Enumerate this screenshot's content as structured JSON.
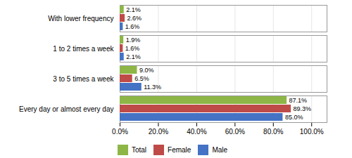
{
  "chart_data": {
    "type": "bar",
    "orientation": "horizontal",
    "categories": [
      "Every day or almost every day",
      "3 to 5 times a week",
      "1 to 2 times a week",
      "With lower frequency"
    ],
    "series": [
      {
        "name": "Total",
        "color": "#8db646",
        "values": [
          87.1,
          9.0,
          1.9,
          2.1
        ],
        "value_labels": [
          "87.1%",
          "9.0%",
          "1.9%",
          "2.1%"
        ]
      },
      {
        "name": "Female",
        "color": "#be4b48",
        "values": [
          89.3,
          6.5,
          1.6,
          2.6
        ],
        "value_labels": [
          "89.3%",
          "6.5%",
          "1.6%",
          "2.6%"
        ]
      },
      {
        "name": "Male",
        "color": "#4472c4",
        "values": [
          85.0,
          11.3,
          2.1,
          1.6
        ],
        "value_labels": [
          "85.0%",
          "11.3%",
          "2.1%",
          "1.6%"
        ]
      }
    ],
    "xlim": [
      0,
      108
    ],
    "xticks": [
      {
        "value": 0,
        "label": "0.0%"
      },
      {
        "value": 20,
        "label": "20.0%"
      },
      {
        "value": 40,
        "label": "40.0%"
      },
      {
        "value": 60,
        "label": "60.0%"
      },
      {
        "value": 80,
        "label": "80.0%"
      },
      {
        "value": 100,
        "label": "100.0%"
      }
    ],
    "grid": true,
    "data_labels": true,
    "legend": "bottom"
  }
}
